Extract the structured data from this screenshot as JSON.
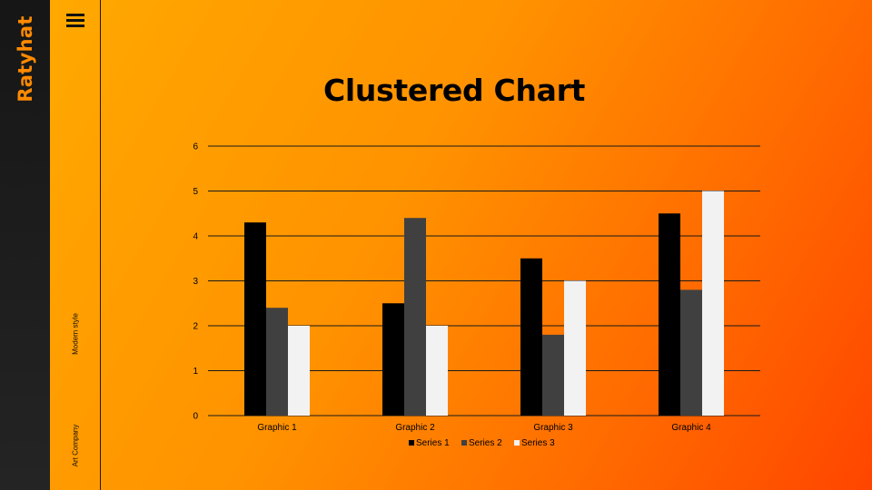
{
  "brand": "Ratyhat",
  "side": {
    "modern": "Modern style",
    "company": "Art Company"
  },
  "icons": {
    "menu": "menu-icon"
  },
  "chart_data": {
    "type": "bar",
    "title": "Clustered Chart",
    "categories": [
      "Graphic 1",
      "Graphic 2",
      "Graphic 3",
      "Graphic 4"
    ],
    "series": [
      {
        "name": "Series 1",
        "values": [
          4.3,
          2.5,
          3.5,
          4.5
        ],
        "color": "#000000"
      },
      {
        "name": "Series 2",
        "values": [
          2.4,
          4.4,
          1.8,
          2.8
        ],
        "color": "#404040"
      },
      {
        "name": "Series 3",
        "values": [
          2.0,
          2.0,
          3.0,
          5.0
        ],
        "color": "#f2f2f2"
      }
    ],
    "ylim": [
      0,
      6
    ],
    "yticks": [
      0,
      1,
      2,
      3,
      4,
      5,
      6
    ],
    "grid": true,
    "legend": "bottom",
    "xlabel": "",
    "ylabel": ""
  }
}
